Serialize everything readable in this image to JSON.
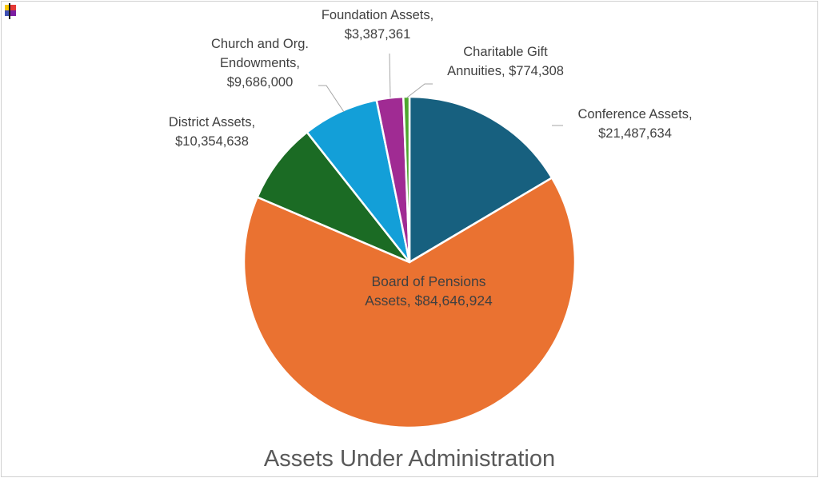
{
  "chart_data": {
    "type": "pie",
    "title": "Assets Under Administration",
    "slices": [
      {
        "name": "Conference Assets",
        "value": 21487634,
        "value_label": "$21,487,634",
        "color": "#17607f",
        "label_lines": [
          "Conference Assets,",
          "$21,487,634"
        ]
      },
      {
        "name": "Board of Pensions Assets",
        "value": 84646924,
        "value_label": "$84,646,924",
        "color": "#ea7231",
        "label_lines": [
          "Board of Pensions",
          "Assets, $84,646,924"
        ]
      },
      {
        "name": "District Assets",
        "value": 10354638,
        "value_label": "$10,354,638",
        "color": "#1b6b24",
        "label_lines": [
          "District Assets,",
          "$10,354,638"
        ]
      },
      {
        "name": "Church and Org. Endowments",
        "value": 9686000,
        "value_label": "$9,686,000",
        "color": "#139fd8",
        "label_lines": [
          "Church and Org.",
          "Endowments,",
          "$9,686,000"
        ]
      },
      {
        "name": "Foundation Assets",
        "value": 3387361,
        "value_label": "$3,387,361",
        "color": "#a02b93",
        "label_lines": [
          "Foundation Assets,",
          "$3,387,361"
        ]
      },
      {
        "name": "Charitable Gift Annuities",
        "value": 774308,
        "value_label": "$774,308",
        "color": "#4ea72e",
        "label_lines": [
          "Charitable Gift",
          "Annuities, $774,308"
        ]
      }
    ],
    "start_angle_deg": 0,
    "direction": "clockwise",
    "legend": "none"
  },
  "app_icon": {
    "name": "app-icon",
    "colors": [
      "#f7c600",
      "#e53935",
      "#3f51b5",
      "#7b1fa2"
    ]
  }
}
